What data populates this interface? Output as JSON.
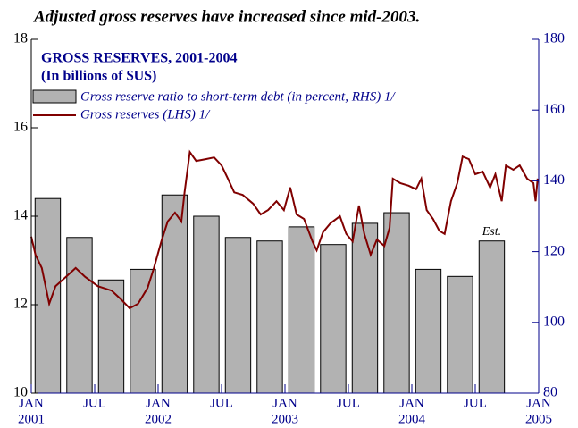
{
  "chart_data": {
    "type": "bar_line",
    "title": "Adjusted gross reserves have increased since mid-2003.",
    "subtitle": "GROSS RESERVES, 2001-2004",
    "unit_label": "(In billions of $US)",
    "annotation": "Est.",
    "categories": [
      null,
      null,
      null,
      null,
      null,
      null,
      null,
      null,
      null,
      null,
      null,
      null,
      null,
      null,
      null
    ],
    "bars": {
      "name": "Gross reserve ratio to short-term debt (in percent, RHS) 1/",
      "color": "#b2b2b2",
      "axis": "y2",
      "values": [
        135,
        124,
        112,
        115,
        136,
        130,
        124,
        123,
        127,
        122,
        128,
        131,
        115,
        113,
        123
      ]
    },
    "line": {
      "name": "Gross reserves (LHS) 1/",
      "color": "#800000",
      "x": [
        0,
        0.4,
        1.0,
        1.7,
        2.3,
        3.1,
        4.2,
        5.1,
        6.3,
        7.6,
        8.5,
        9.3,
        10.1,
        11.0,
        11.6,
        12.3,
        12.9,
        13.6,
        14.2,
        14.5,
        15.0,
        15.6,
        16.5,
        17.3,
        18.0,
        18.6,
        19.2,
        20.0,
        21.0,
        21.7,
        22.4,
        23.2,
        23.9,
        24.5,
        25.1,
        25.8,
        26.6,
        27.0,
        27.6,
        28.3,
        29.2,
        29.8,
        30.4,
        31.0,
        31.5,
        32.1,
        32.7,
        33.4,
        33.9,
        34.2,
        34.9,
        35.7,
        36.4,
        36.9,
        37.4,
        38.0,
        38.6,
        39.1,
        39.7,
        40.3,
        40.8,
        41.4,
        42.0,
        42.7,
        43.4,
        43.9,
        44.5,
        44.9,
        45.6,
        46.2,
        46.9,
        47.5,
        47.7,
        47.9
      ],
      "values": [
        13.54,
        13.13,
        12.83,
        12.02,
        12.42,
        12.59,
        12.83,
        12.63,
        12.42,
        12.32,
        12.12,
        11.92,
        12.02,
        12.38,
        12.83,
        13.43,
        13.88,
        14.08,
        13.88,
        14.54,
        15.45,
        15.25,
        15.29,
        15.33,
        15.15,
        14.85,
        14.54,
        14.48,
        14.28,
        14.04,
        14.14,
        14.34,
        14.14,
        14.65,
        14.04,
        13.94,
        13.43,
        13.23,
        13.64,
        13.84,
        14.0,
        13.6,
        13.43,
        14.24,
        13.6,
        13.13,
        13.47,
        13.33,
        13.74,
        14.85,
        14.75,
        14.69,
        14.61,
        14.85,
        14.14,
        13.94,
        13.67,
        13.6,
        14.34,
        14.75,
        15.35,
        15.29,
        14.95,
        15.01,
        14.65,
        14.95,
        14.34,
        15.15,
        15.05,
        15.15,
        14.85,
        14.75,
        14.34,
        14.85
      ]
    },
    "xlim": [
      0,
      48
    ],
    "xticks": [
      {
        "value": 0,
        "label": "JAN"
      },
      {
        "value": 6,
        "label": "JUL"
      },
      {
        "value": 12,
        "label": "JAN"
      },
      {
        "value": 18,
        "label": "JUL"
      },
      {
        "value": 24,
        "label": "JAN"
      },
      {
        "value": 30,
        "label": "JUL"
      },
      {
        "value": 36,
        "label": "JAN"
      },
      {
        "value": 42,
        "label": "JUL"
      },
      {
        "value": 48,
        "label": "JAN"
      }
    ],
    "year_labels": [
      {
        "value": 0,
        "label": "2001"
      },
      {
        "value": 12,
        "label": "2002"
      },
      {
        "value": 24,
        "label": "2003"
      },
      {
        "value": 36,
        "label": "2004"
      },
      {
        "value": 48,
        "label": "2005"
      }
    ],
    "ylim": [
      10,
      18
    ],
    "yticks": [
      10,
      12,
      14,
      16,
      18
    ],
    "y2lim": [
      80,
      180
    ],
    "y2ticks": [
      80,
      100,
      120,
      140,
      160,
      180
    ]
  }
}
